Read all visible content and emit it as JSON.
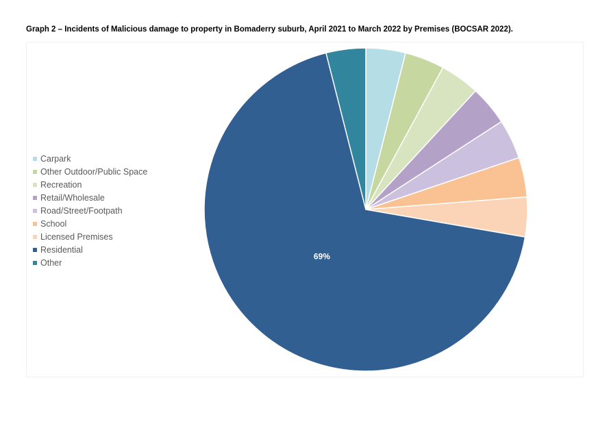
{
  "chart_data": {
    "type": "pie",
    "title": "Graph 2 – Incidents of Malicious damage to property in Bomaderry suburb, April 2021 to March 2022 by Premises (BOCSAR 2022).",
    "legend_position": "left",
    "slices": [
      {
        "name": "Carpark",
        "value": 4,
        "color": "#b4dde6"
      },
      {
        "name": "Other Outdoor/Public Space",
        "value": 4,
        "color": "#c6d89f"
      },
      {
        "name": "Recreation",
        "value": 4,
        "color": "#d7e4bf"
      },
      {
        "name": "Retail/Wholesale",
        "value": 4,
        "color": "#b3a1c7"
      },
      {
        "name": "Road/Street/Footpath",
        "value": 4,
        "color": "#cbc0dd"
      },
      {
        "name": "School",
        "value": 4,
        "color": "#fac192"
      },
      {
        "name": "Licensed Premises",
        "value": 4,
        "color": "#fbd4b7"
      },
      {
        "name": "Residential",
        "value": 69,
        "color": "#315f92",
        "label": "69%"
      },
      {
        "name": "Other",
        "value": 4,
        "color": "#31859c"
      }
    ]
  }
}
